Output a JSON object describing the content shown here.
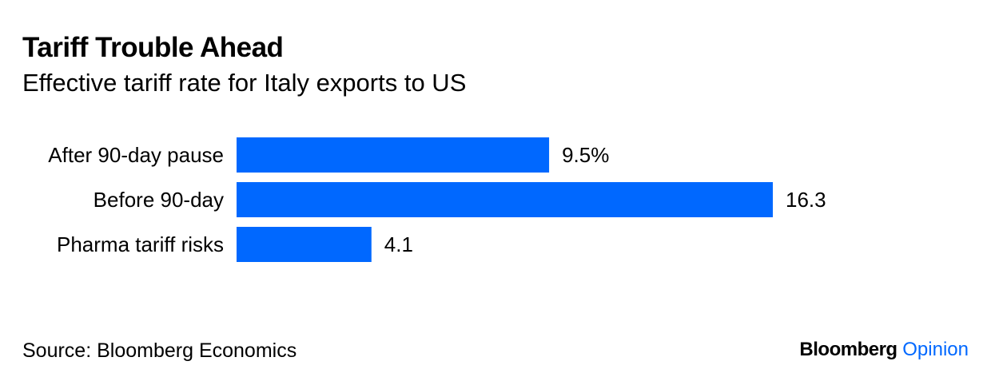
{
  "chart_data": {
    "type": "bar",
    "orientation": "horizontal",
    "title": "Tariff Trouble Ahead",
    "subtitle": "Effective tariff rate for Italy exports to US",
    "categories": [
      "After 90-day pause",
      "Before 90-day",
      "Pharma tariff risks"
    ],
    "values": [
      9.5,
      16.3,
      4.1
    ],
    "value_labels": [
      "9.5%",
      "16.3",
      "4.1"
    ],
    "xlim": [
      0,
      16.3
    ],
    "grid": false,
    "legend": "none",
    "bar_color": "#0068FF"
  },
  "footer": {
    "source": "Source: Bloomberg Economics",
    "brand_main": "Bloomberg",
    "brand_sub": "Opinion",
    "brand_sub_color": "#0068FF"
  }
}
